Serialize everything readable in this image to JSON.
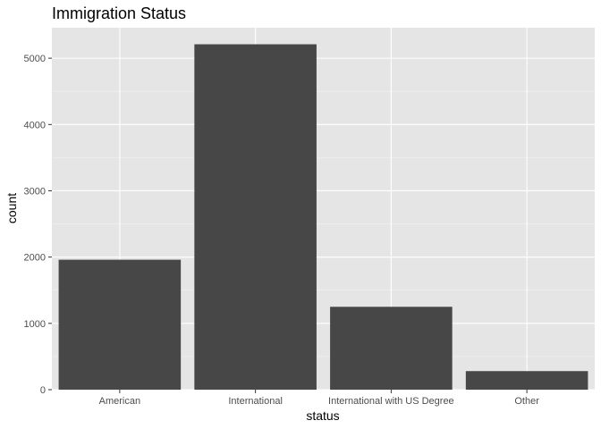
{
  "chart_data": {
    "type": "bar",
    "title": "Immigration Status",
    "xlabel": "status",
    "ylabel": "count",
    "categories": [
      "American",
      "International",
      "International with US Degree",
      "Other"
    ],
    "values": [
      1960,
      5210,
      1250,
      280
    ],
    "ylim": [
      0,
      5460
    ],
    "yticks": [
      0,
      1000,
      2000,
      3000,
      4000,
      5000
    ],
    "grid": true,
    "colors": {
      "bar": "#474747",
      "panel": "#e5e5e5",
      "grid_major": "#ffffff",
      "grid_minor": "#f2f2f2"
    }
  }
}
